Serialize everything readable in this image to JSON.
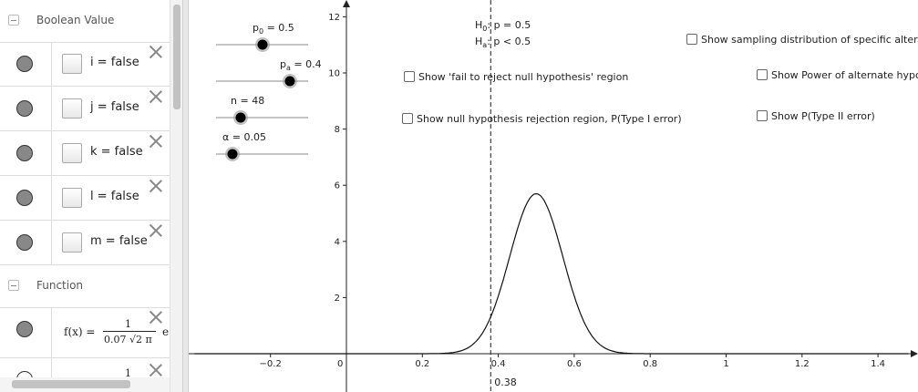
{
  "algebra": {
    "groups": [
      {
        "title": "Boolean Value"
      },
      {
        "title": "Function"
      }
    ],
    "booleans": [
      {
        "text": "i = false"
      },
      {
        "text": "j = false"
      },
      {
        "text": "k = false"
      },
      {
        "text": "l = false"
      },
      {
        "text": "m = false"
      }
    ],
    "function_row": {
      "lhs": "f(x) =",
      "numerator": "1",
      "denominator": "0.07 √2 π",
      "tail": "e",
      "next_numerator": "1"
    }
  },
  "graphics": {
    "sliders": [
      {
        "label": "p0 = 0.5",
        "sym": "p",
        "sub": "0",
        "rest": " = 0.5",
        "value": 0.5
      },
      {
        "label": "pa = 0.4",
        "sym": "p",
        "sub": "a",
        "rest": " = 0.4",
        "value": 0.4
      },
      {
        "label": "n = 48",
        "sym": "n",
        "sub": "",
        "rest": " = 48",
        "value": 48
      },
      {
        "label": "α = 0.05",
        "sym": "α",
        "sub": "",
        "rest": " = 0.05",
        "value": 0.05
      }
    ],
    "hypotheses": {
      "h0": {
        "sym": "H",
        "sub": "0",
        "rest": ": p = 0.5"
      },
      "ha": {
        "sym": "H",
        "sub": "a",
        "rest": ": p < 0.5"
      }
    },
    "options": {
      "sampling": "Show sampling distribution of specific alternate",
      "fail_reject": "Show 'fail to reject null hypothesis' region",
      "power": "Show Power of alternate hypothesis",
      "rejection": "Show null hypothesis rejection region, P(Type I error)",
      "type2": "Show P(Type II error)"
    },
    "critical_label": "0.38",
    "x_ticks": [
      "−0.2",
      "0",
      "0.2",
      "0.4",
      "0.6",
      "0.8",
      "1",
      "1.2",
      "1.4"
    ],
    "y_ticks": [
      "2",
      "4",
      "6",
      "8",
      "10",
      "12"
    ]
  },
  "chart_data": {
    "type": "line",
    "series": [
      {
        "function": "normal pdf",
        "mean": 0.5,
        "sd": 0.07
      }
    ],
    "critical_value": 0.38,
    "xlim": [
      -0.4,
      1.48
    ],
    "ylim": [
      -1.3,
      12.6
    ],
    "x_ticks": [
      -0.2,
      0,
      0.2,
      0.4,
      0.6,
      0.8,
      1,
      1.2,
      1.4
    ],
    "y_ticks": [
      2,
      4,
      6,
      8,
      10,
      12
    ],
    "grid": false
  }
}
